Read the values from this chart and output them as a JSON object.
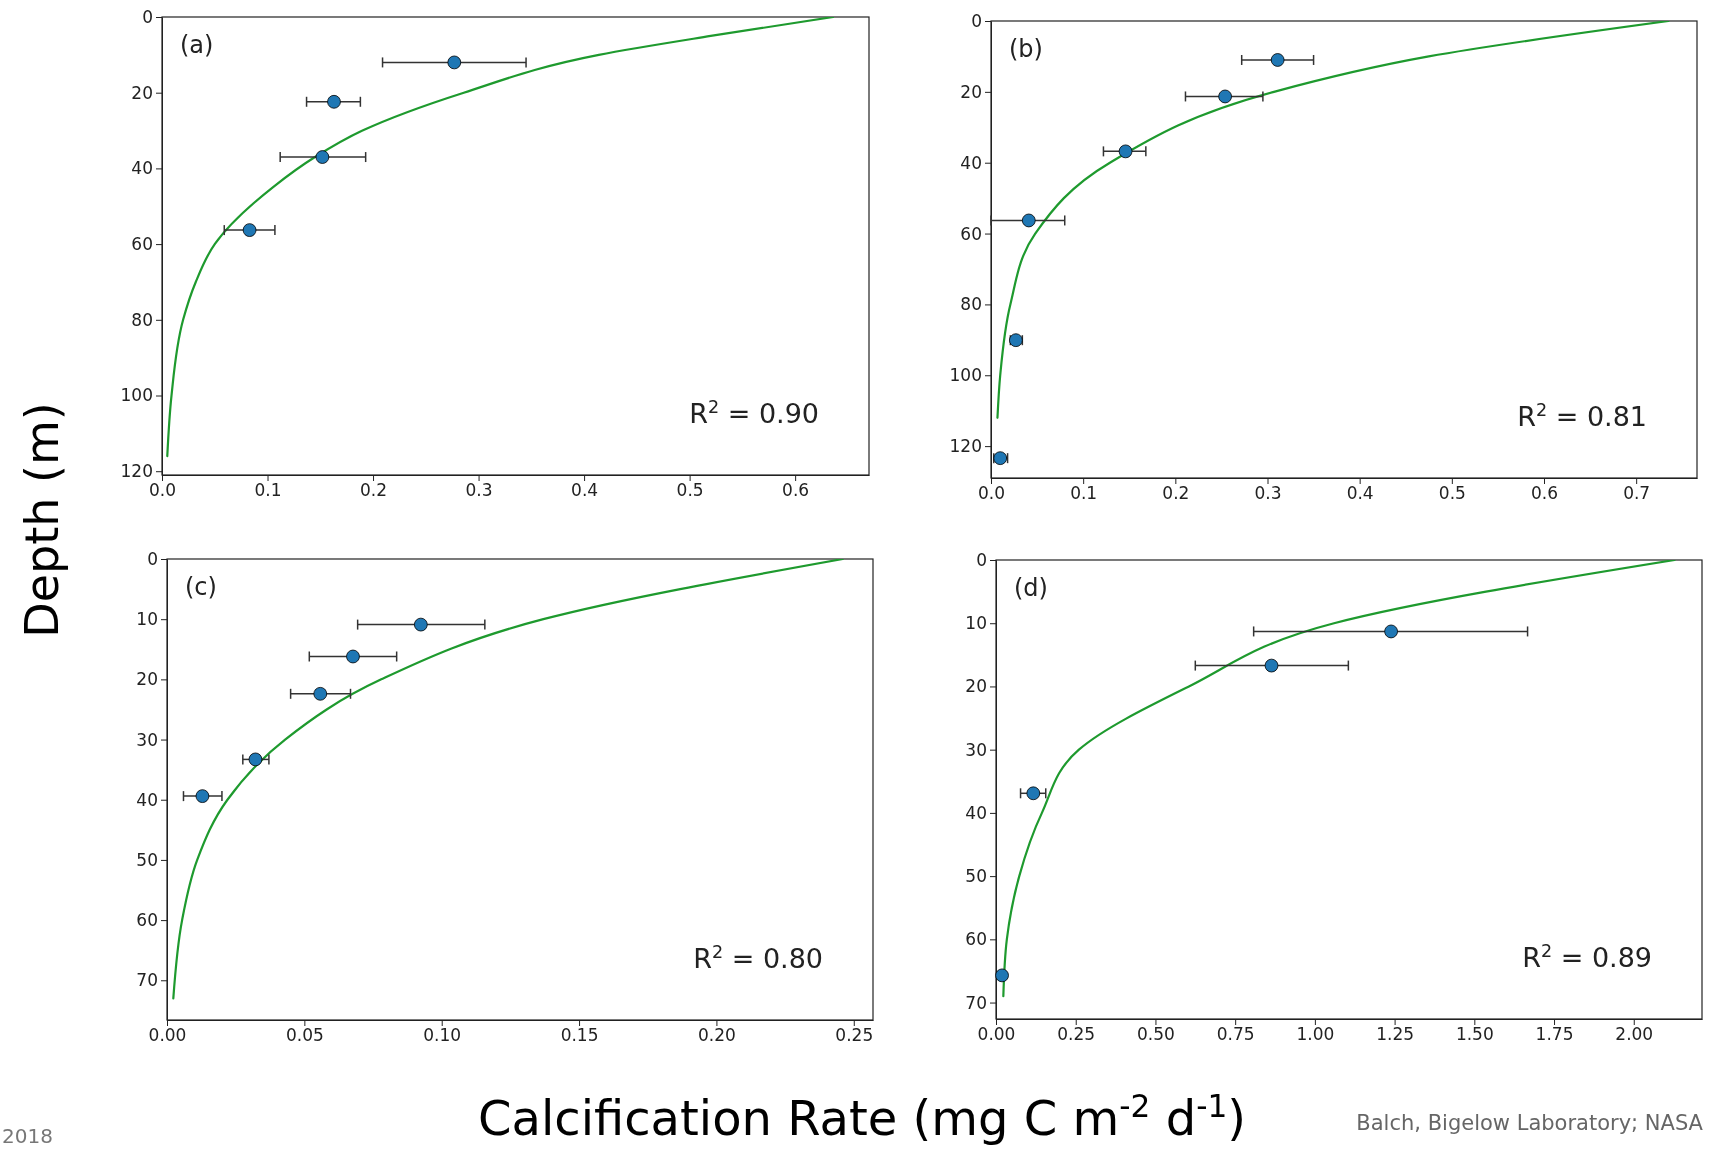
{
  "chart_data": [
    {
      "type": "scatter",
      "ylabel": "Depth (m)",
      "annotations": [
        "(a)",
        "R$^{2}$ = 0.90"
      ],
      "xlim": [
        0,
        0.67
      ],
      "ylim": [
        121,
        0
      ],
      "xticks": [
        {
          "value": 0,
          "label": "0.0"
        },
        0.1,
        0.2,
        0.3,
        0.4,
        0.5,
        0.6
      ],
      "yticks": [
        0,
        20,
        40,
        60,
        80,
        100,
        120
      ],
      "series": [
        {
          "marker": "circle",
          "color": "#1f77b4",
          "x": [
            0.277,
            0.163,
            0.152,
            0.083
          ],
          "values": [
            12.0,
            22.4,
            37.0,
            56.3
          ],
          "xerrors": [
            [
              0.209,
              0.345
            ],
            [
              0.137,
              0.188
            ],
            [
              0.112,
              0.193
            ],
            [
              0.059,
              0.107
            ]
          ]
        },
        {
          "type": "line",
          "color": "#1e9a2e",
          "x": [
            0.636,
            0.52,
            0.414,
            0.286,
            0.19,
            0.145,
            0.105,
            0.05,
            0.032,
            0.02,
            0.009,
            0.005
          ],
          "values": [
            0,
            5,
            10,
            20,
            30,
            37,
            45,
            60,
            70,
            80,
            100,
            116
          ]
        }
      ]
    },
    {
      "type": "scatter",
      "annotations": [
        "(b)",
        "R$^{2}$ = 0.81"
      ],
      "xlim": [
        0,
        0.766
      ],
      "ylim": [
        129,
        0
      ],
      "xticks": [
        {
          "value": 0,
          "label": "0.0"
        },
        0.1,
        0.2,
        0.3,
        0.4,
        0.5,
        0.6,
        0.7
      ],
      "yticks": [
        0,
        20,
        40,
        60,
        80,
        100,
        120
      ],
      "series": [
        {
          "marker": "circle",
          "color": "#1f77b4",
          "x": [
            0.311,
            0.254,
            0.146,
            0.041,
            0.027,
            0.01
          ],
          "values": [
            11.0,
            21.3,
            36.8,
            56.3,
            90.1,
            123.4
          ],
          "xerrors": [
            [
              0.272,
              0.35
            ],
            [
              0.211,
              0.295
            ],
            [
              0.122,
              0.168
            ],
            [
              0.0,
              0.08
            ],
            [
              0.021,
              0.034
            ],
            [
              0.003,
              0.018
            ]
          ]
        },
        {
          "type": "line",
          "color": "#1e9a2e",
          "x": [
            0.735,
            0.475,
            0.307,
            0.129,
            0.048,
            0.021,
            0.01,
            0.007
          ],
          "values": [
            0,
            10,
            20,
            40,
            60,
            80,
            100,
            112
          ]
        }
      ]
    },
    {
      "type": "scatter",
      "xlabel": "Calcification Rate (mg C m$^{-2}$ d$^{-1}$)",
      "annotations": [
        "(c)",
        "R$^{2}$ = 0.80",
        "2018"
      ],
      "xlim": [
        0,
        0.257
      ],
      "ylim": [
        76.6,
        0
      ],
      "xticks": [
        {
          "value": 0,
          "label": "0.00"
        },
        {
          "value": 0.05,
          "label": "0.05"
        },
        {
          "value": 0.1,
          "label": "0.10"
        },
        {
          "value": 0.15,
          "label": "0.15"
        },
        {
          "value": 0.2,
          "label": "0.20"
        },
        {
          "value": 0.25,
          "label": "0.25"
        }
      ],
      "yticks": [
        0,
        10,
        20,
        30,
        40,
        50,
        60,
        70
      ],
      "series": [
        {
          "marker": "circle",
          "color": "#1f77b4",
          "x": [
            0.0924,
            0.0677,
            0.0558,
            0.0322,
            0.0129
          ],
          "values": [
            10.9,
            16.2,
            22.4,
            33.3,
            39.4
          ],
          "xerrors": [
            [
              0.0694,
              0.1157
            ],
            [
              0.0518,
              0.0836
            ],
            [
              0.045,
              0.0668
            ],
            [
              0.0276,
              0.0371
            ],
            [
              0.006,
              0.02
            ]
          ]
        },
        {
          "type": "line",
          "color": "#1e9a2e",
          "x": [
            0.246,
            0.137,
            0.078,
            0.043,
            0.022,
            0.011,
            0.0055,
            0.0023
          ],
          "values": [
            0,
            10,
            20,
            30,
            40,
            50,
            60,
            73
          ]
        }
      ]
    },
    {
      "type": "scatter",
      "annotations": [
        "(d)",
        "R$^{2}$ = 0.89",
        "Balch, Bigelow Laboratory; NASA"
      ],
      "xlim": [
        0,
        2.214
      ],
      "ylim": [
        72.6,
        0
      ],
      "xticks": [
        {
          "value": 0,
          "label": "0.00"
        },
        0.25,
        {
          "value": 0.5,
          "label": "0.50"
        },
        0.75,
        {
          "value": 1,
          "label": "1.00"
        },
        1.25,
        {
          "value": 1.5,
          "label": "1.50"
        },
        1.75,
        {
          "value": 2,
          "label": "2.00"
        }
      ],
      "yticks": [
        0,
        10,
        20,
        30,
        40,
        50,
        60,
        70
      ],
      "series": [
        {
          "marker": "circle",
          "color": "#1f77b4",
          "x": [
            1.239,
            0.864,
            0.117,
            0.019
          ],
          "values": [
            11.3,
            16.7,
            36.9,
            65.7
          ],
          "xerrors": [
            [
              0.808,
              1.667
            ],
            [
              0.625,
              1.105
            ],
            [
              0.077,
              0.156
            ],
            null
          ]
        },
        {
          "type": "line",
          "color": "#1e9a2e",
          "x": [
            2.128,
            1.06,
            0.605,
            0.26,
            0.144,
            0.073,
            0.034,
            0.023
          ],
          "values": [
            0,
            10,
            20,
            30,
            40,
            50,
            60,
            69
          ]
        }
      ]
    }
  ]
}
